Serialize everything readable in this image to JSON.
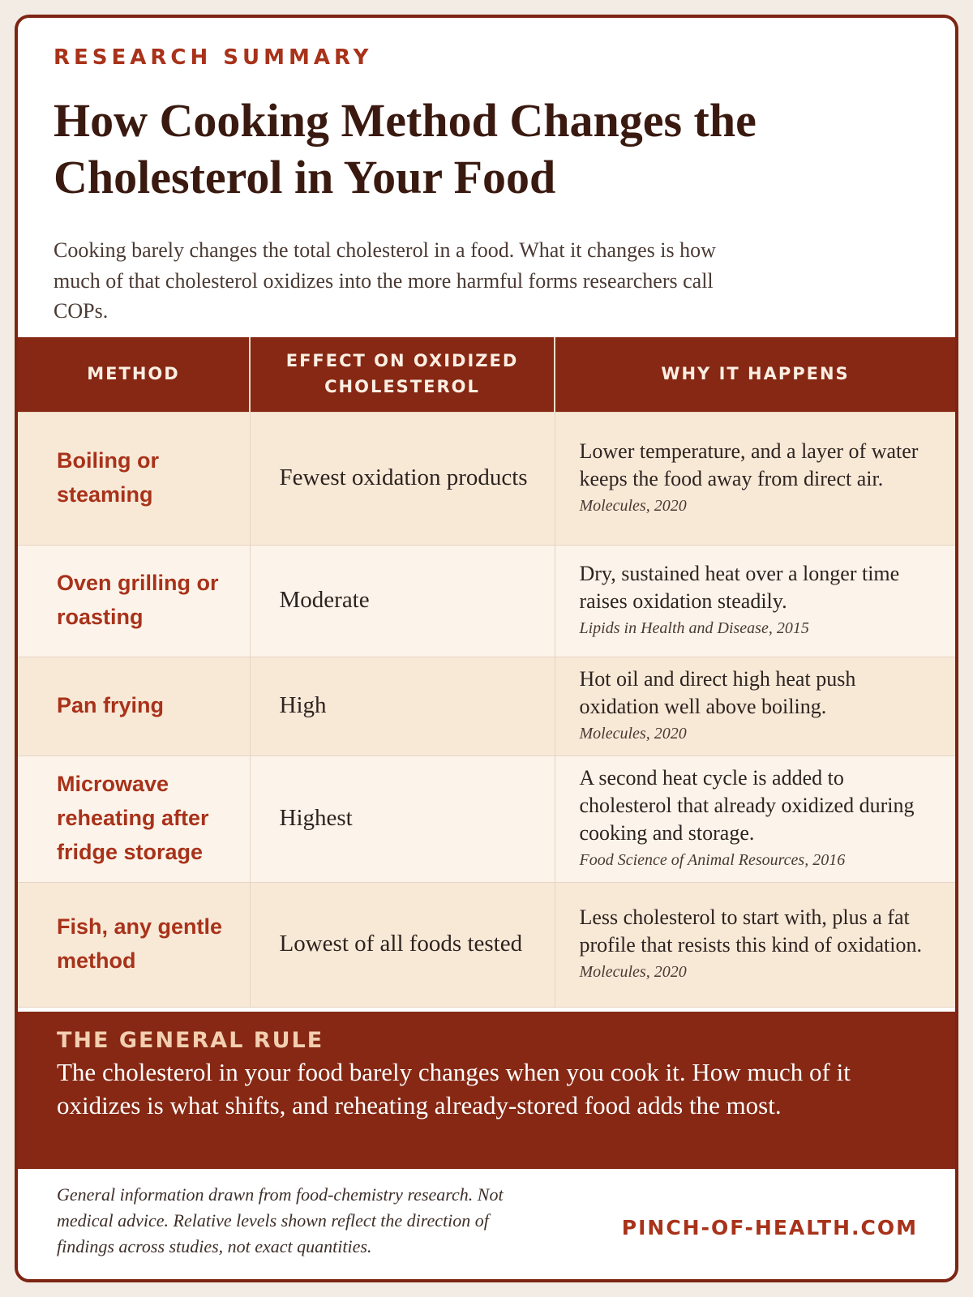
{
  "header": {
    "eyebrow": "RESEARCH SUMMARY",
    "title": "How Cooking Method Changes the Cholesterol in Your Food",
    "intro": "Cooking barely changes the total cholesterol in a food. What it changes is how much of that cholesterol oxidizes into the more harmful forms researchers call COPs."
  },
  "table": {
    "headers": [
      "METHOD",
      "EFFECT ON OXIDIZED CHOLESTEROL",
      "WHY IT HAPPENS"
    ],
    "rows": [
      {
        "method": "Boiling or steaming",
        "effect": "Fewest oxidation products",
        "why": "Lower temperature, and a layer of water keeps the food away from direct air.",
        "source": "Molecules, 2020"
      },
      {
        "method": "Oven grilling or roasting",
        "effect": "Moderate",
        "why": "Dry, sustained heat over a longer time raises oxidation steadily.",
        "source": "Lipids in Health and Disease, 2015"
      },
      {
        "method": "Pan frying",
        "effect": "High",
        "why": "Hot oil and direct high heat push oxidation well above boiling.",
        "source": "Molecules, 2020"
      },
      {
        "method": "Microwave reheating after fridge storage",
        "effect": "Highest",
        "why": "A second heat cycle is added to cholesterol that already oxidized during cooking and storage.",
        "source": "Food Science of Animal Resources, 2016"
      },
      {
        "method": "Fish, any gentle method",
        "effect": "Lowest of all foods tested",
        "why": "Less cholesterol to start with, plus a fat profile that resists this kind of oxidation.",
        "source": "Molecules, 2020"
      }
    ]
  },
  "rule": {
    "label": "THE GENERAL RULE",
    "text": "The cholesterol in your food barely changes when you cook it. How much of it oxidizes is what shifts, and reheating already-stored food adds the most."
  },
  "footer": {
    "note": "General information drawn from food-chemistry research. Not medical advice. Relative levels shown reflect the direction of findings across studies, not exact quantities.",
    "site": "PINCH-OF-HEALTH.COM"
  }
}
